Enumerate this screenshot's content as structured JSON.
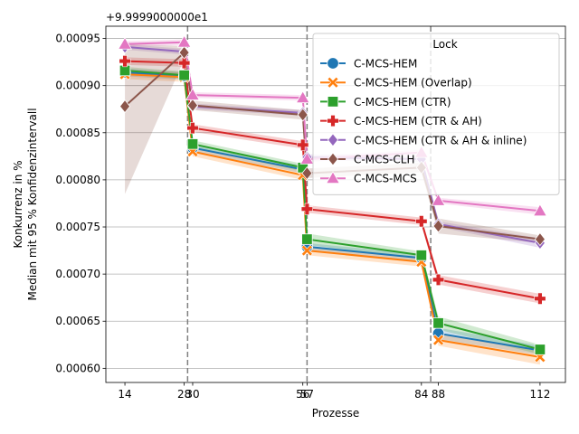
{
  "chart_data": {
    "type": "line",
    "x": [
      14,
      28,
      30,
      56,
      57,
      84,
      88,
      112
    ],
    "x_tick_labels": [
      "14",
      "28",
      "30",
      "56",
      "57",
      "84",
      "88",
      "112"
    ],
    "xlabel": "Prozesse",
    "ylabel_lines": [
      "Konkurrenz in %",
      "Median mit 95 % Konfidenzintervall"
    ],
    "offset_text": "+9.9999000000e1",
    "xlim": [
      9.5,
      118
    ],
    "ylim": [
      0.000585,
      0.000963
    ],
    "y_ticks": [
      0.0006,
      0.00065,
      0.0007,
      0.00075,
      0.0008,
      0.00085,
      0.0009,
      0.00095
    ],
    "y_tick_labels": [
      "0.00060",
      "0.00065",
      "0.00070",
      "0.00075",
      "0.00080",
      "0.00085",
      "0.00090",
      "0.00095"
    ],
    "vlines": [
      28.8,
      57,
      86.2
    ],
    "grid": "y",
    "legend_title": "Lock",
    "legend_position": "upper right",
    "series": [
      {
        "name": "C-MCS-HEM",
        "color": "#1f77b4",
        "marker": "circle",
        "x": [
          14,
          28,
          30,
          56,
          57,
          84,
          88,
          112
        ],
        "values": [
          0.000914,
          0.00091,
          0.000834,
          0.000811,
          0.000729,
          0.000717,
          0.000637,
          0.000619
        ],
        "lower": [
          0.00091,
          0.000906,
          0.00083,
          0.000807,
          0.000725,
          0.000713,
          0.000631,
          0.000614
        ],
        "upper": [
          0.000918,
          0.000914,
          0.000838,
          0.000815,
          0.000733,
          0.000721,
          0.000643,
          0.000624
        ]
      },
      {
        "name": "C-MCS-HEM (Overlap)",
        "color": "#ff7f0e",
        "marker": "x",
        "x": [
          14,
          28,
          30,
          56,
          57,
          84,
          88,
          112
        ],
        "values": [
          0.000912,
          0.000909,
          0.00083,
          0.000805,
          0.000725,
          0.000713,
          0.00063,
          0.000612
        ],
        "lower": [
          0.000907,
          0.000904,
          0.000825,
          0.0008,
          0.00072,
          0.000708,
          0.000624,
          0.000604
        ],
        "upper": [
          0.000917,
          0.000914,
          0.000835,
          0.00081,
          0.00073,
          0.000718,
          0.000636,
          0.00062
        ]
      },
      {
        "name": "C-MCS-HEM (CTR)",
        "color": "#2ca02c",
        "marker": "square",
        "x": [
          14,
          28,
          30,
          56,
          57,
          84,
          88,
          112
        ],
        "values": [
          0.000916,
          0.000911,
          0.000838,
          0.000813,
          0.000737,
          0.00072,
          0.000648,
          0.00062
        ],
        "lower": [
          0.000912,
          0.000907,
          0.000834,
          0.000809,
          0.000731,
          0.000716,
          0.000641,
          0.000615
        ],
        "upper": [
          0.00092,
          0.000915,
          0.000842,
          0.000817,
          0.000743,
          0.000724,
          0.000655,
          0.000625
        ]
      },
      {
        "name": "C-MCS-HEM (CTR & AH)",
        "color": "#d62728",
        "marker": "plus",
        "x": [
          14,
          28,
          30,
          56,
          57,
          84,
          88,
          112
        ],
        "values": [
          0.000926,
          0.000924,
          0.000855,
          0.000837,
          0.000769,
          0.000756,
          0.000694,
          0.000674
        ],
        "lower": [
          0.000922,
          0.00092,
          0.000851,
          0.000833,
          0.000765,
          0.000752,
          0.000689,
          0.000669
        ],
        "upper": [
          0.00093,
          0.000928,
          0.000859,
          0.000841,
          0.000773,
          0.00076,
          0.000699,
          0.000679
        ]
      },
      {
        "name": "C-MCS-HEM (CTR & AH & inline)",
        "color": "#9467bd",
        "marker": "diamond",
        "x": [
          14,
          28,
          30,
          56,
          57,
          84,
          88,
          112
        ],
        "values": [
          0.000941,
          0.000936,
          0.000878,
          0.000871,
          0.000824,
          0.000822,
          0.000753,
          0.000733
        ],
        "lower": [
          0.000938,
          0.000933,
          0.000875,
          0.000868,
          0.000821,
          0.000819,
          0.00075,
          0.000728
        ],
        "upper": [
          0.000944,
          0.000939,
          0.000881,
          0.000874,
          0.000827,
          0.000825,
          0.000756,
          0.000738
        ]
      },
      {
        "name": "C-MCS-CLH",
        "color": "#8c564b",
        "marker": "diamond",
        "x": [
          14,
          28,
          30,
          56,
          57,
          84,
          88,
          112
        ],
        "values": [
          0.000878,
          0.000935,
          0.000879,
          0.000869,
          0.000807,
          0.000813,
          0.000751,
          0.000737
        ],
        "lower": [
          0.000785,
          0.000928,
          0.000874,
          0.000864,
          0.000802,
          0.000808,
          0.000743,
          0.000733
        ],
        "upper": [
          0.000944,
          0.000942,
          0.000884,
          0.000874,
          0.000812,
          0.000818,
          0.000759,
          0.000741
        ]
      },
      {
        "name": "C-MCS-MCS",
        "color": "#e377c2",
        "marker": "triangle",
        "x": [
          14,
          28,
          30,
          56,
          57,
          84,
          88,
          112
        ],
        "values": [
          0.000944,
          0.000946,
          0.00089,
          0.000887,
          0.000822,
          0.000829,
          0.000778,
          0.000767
        ],
        "lower": [
          0.000941,
          0.000943,
          0.000887,
          0.000884,
          0.000819,
          0.000826,
          0.000775,
          0.000763
        ],
        "upper": [
          0.000947,
          0.000949,
          0.000893,
          0.00089,
          0.000825,
          0.000832,
          0.000781,
          0.000771
        ]
      }
    ]
  }
}
